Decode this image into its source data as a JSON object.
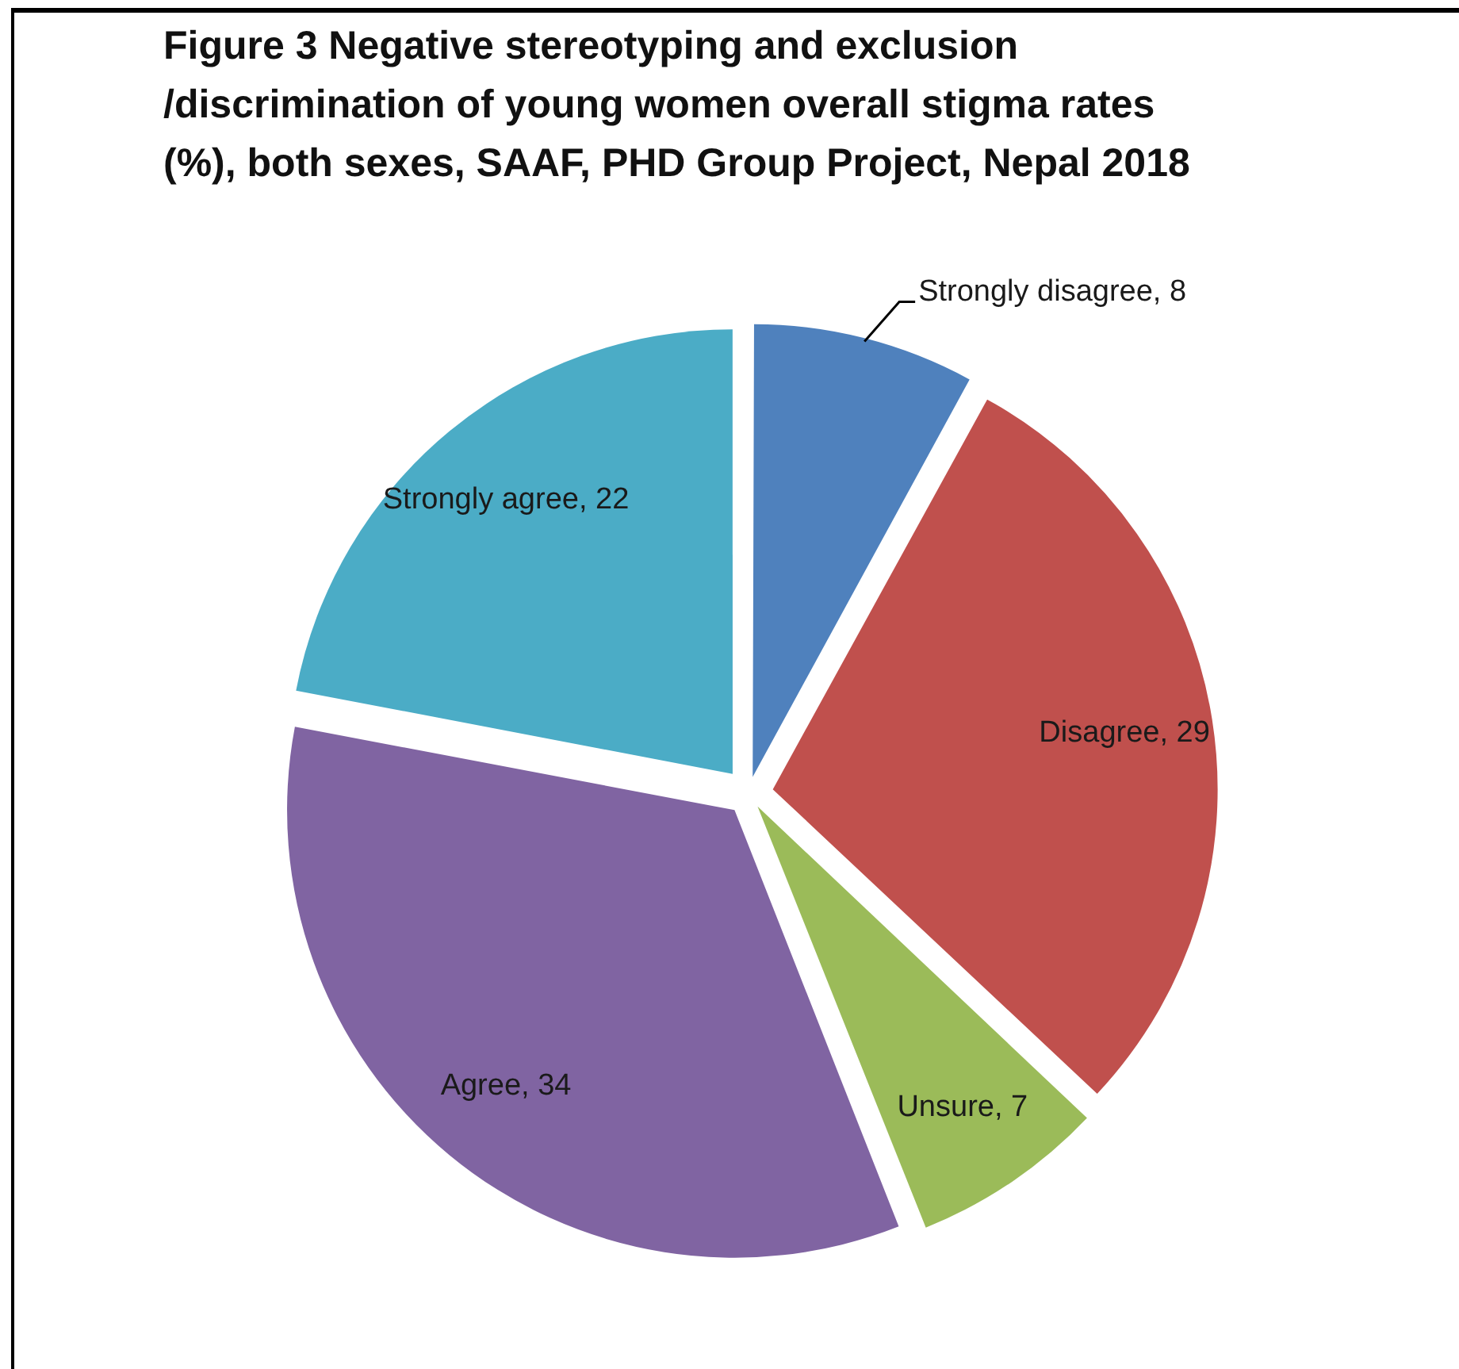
{
  "chart_data": {
    "type": "pie",
    "title": "Figure 3 Negative stereotyping and exclusion /discrimination of young women overall stigma rates (%), both sexes, SAAF, PHD Group Project, Nepal 2018",
    "categories": [
      "Strongly disagree",
      "Disagree",
      "Unsure",
      "Agree",
      "Strongly agree"
    ],
    "values": [
      8,
      29,
      7,
      34,
      22
    ],
    "value_labels": [
      ", 8",
      ", 29",
      ", 7",
      ", 34",
      ", 22"
    ],
    "colors": [
      "#4f81bd",
      "#c0504d",
      "#9bbb59",
      "#8064a2",
      "#4bacc6"
    ],
    "legend": false
  }
}
